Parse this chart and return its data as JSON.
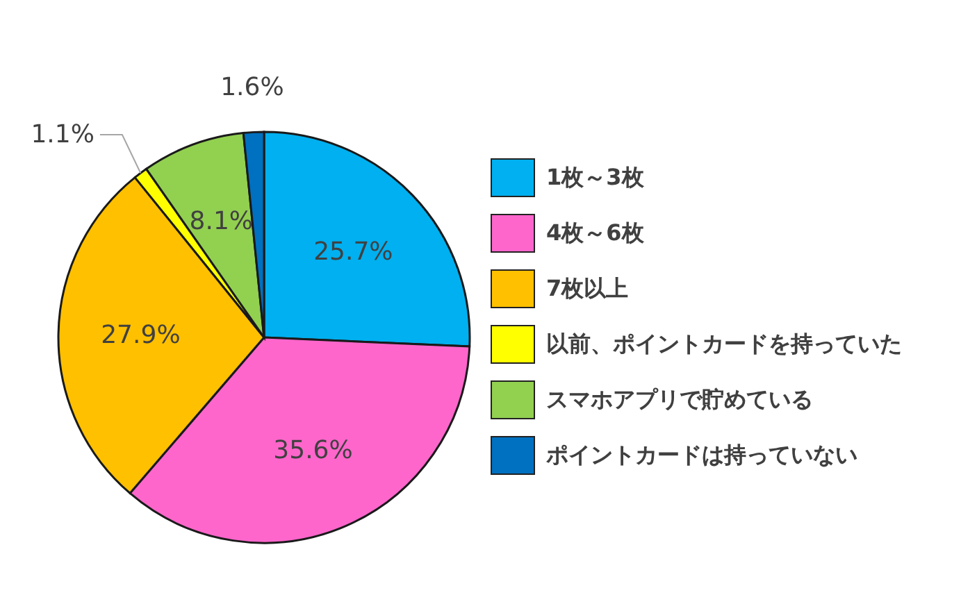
{
  "chart_data": {
    "type": "pie",
    "categories": [
      "1枚～3枚",
      "4枚～6枚",
      "7枚以上",
      "以前、ポイントカードを持っていた",
      "スマホアプリで貯めている",
      "ポイントカードは持っていない"
    ],
    "values": [
      25.7,
      35.6,
      27.9,
      1.1,
      8.1,
      1.6
    ],
    "colors": [
      "#00b0f0",
      "#ff66cc",
      "#ffc000",
      "#ffff00",
      "#92d050",
      "#0070c0"
    ],
    "value_labels": [
      "25.7%",
      "35.6%",
      "27.9%",
      "1.1%",
      "8.1%",
      "1.6%"
    ],
    "legend": "right"
  }
}
